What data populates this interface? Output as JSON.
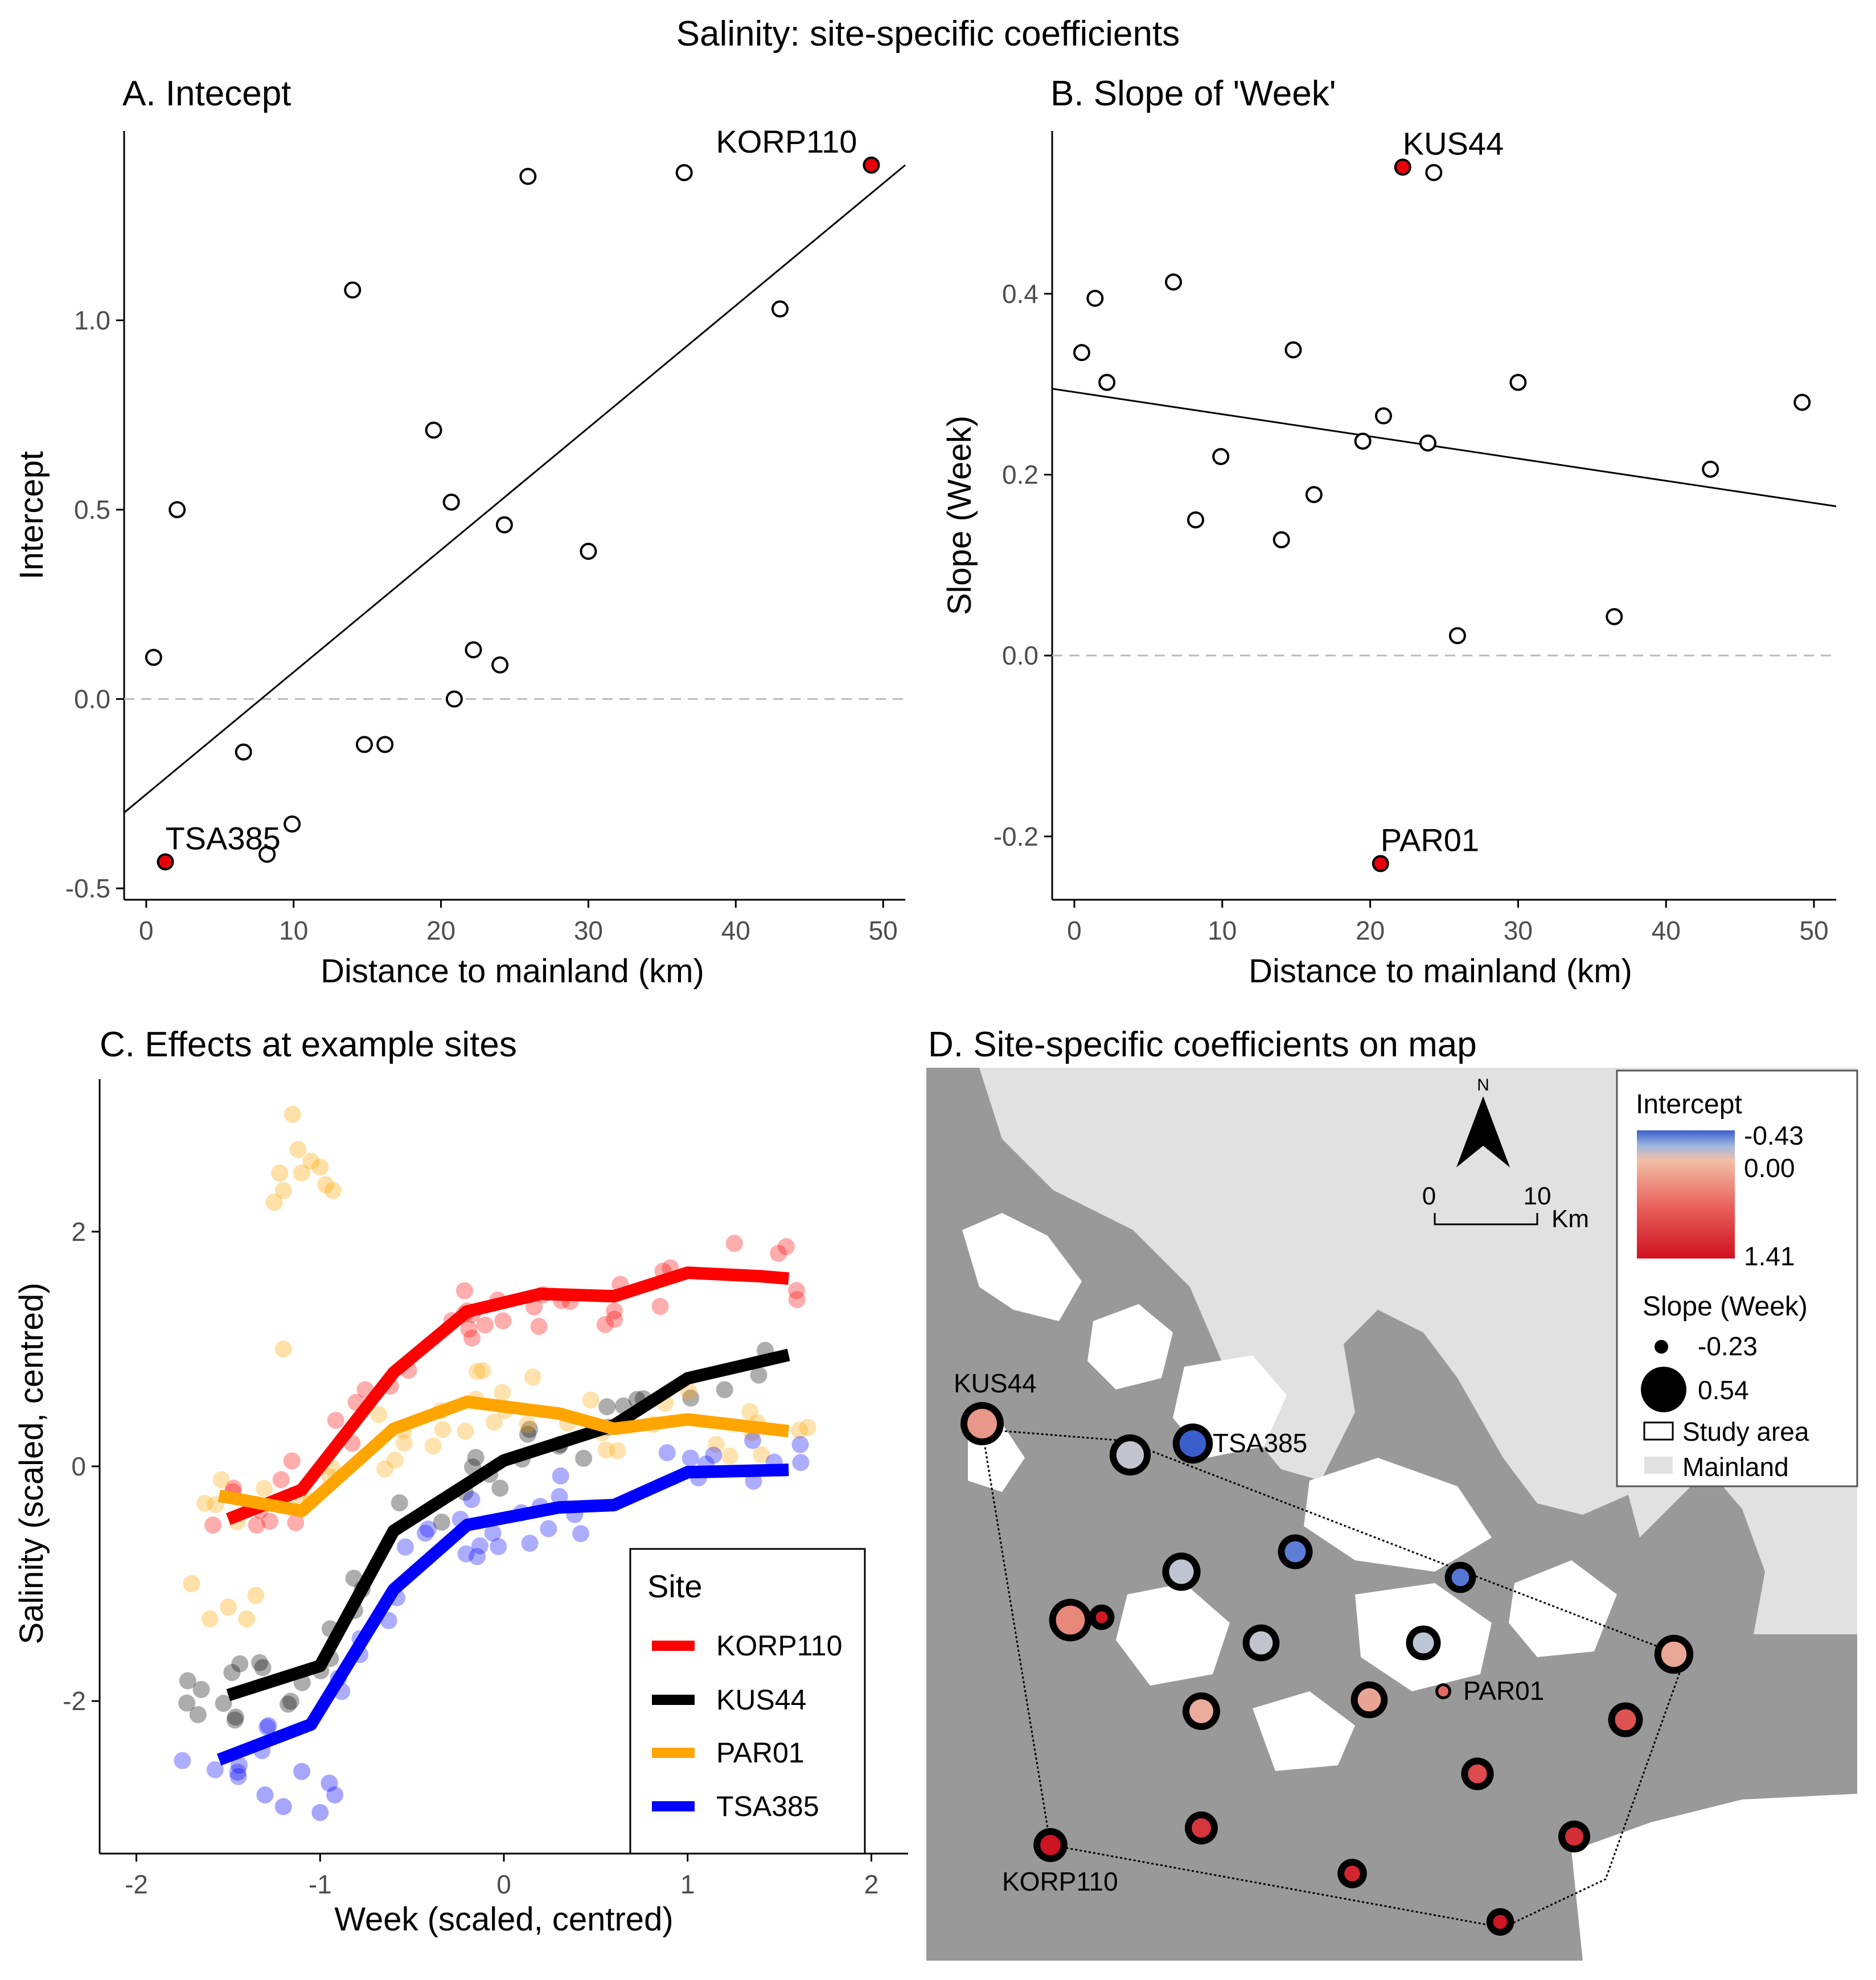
{
  "figure_title": "Salinity: site-specific coefficients",
  "chart_data": [
    {
      "panel": "A",
      "type": "scatter",
      "title": "A. Intecept",
      "xlabel": "Distance to mainland (km)",
      "ylabel": "Intercept",
      "xlim": [
        -1.5,
        51.5
      ],
      "ylim": [
        -0.53,
        1.5
      ],
      "xticks": [
        0,
        10,
        20,
        30,
        40,
        50
      ],
      "yticks": [
        -0.5,
        0.0,
        0.5,
        1.0
      ],
      "ytick_labels": [
        "-0.5",
        "0.0",
        "0.5",
        "1.0"
      ],
      "points": [
        {
          "x": 0.5,
          "y": 0.11
        },
        {
          "x": 2.1,
          "y": 0.5
        },
        {
          "x": 6.6,
          "y": -0.14
        },
        {
          "x": 8.2,
          "y": -0.41
        },
        {
          "x": 9.9,
          "y": -0.33
        },
        {
          "x": 14.0,
          "y": 1.08
        },
        {
          "x": 14.8,
          "y": -0.12
        },
        {
          "x": 16.2,
          "y": -0.12
        },
        {
          "x": 19.5,
          "y": 0.71
        },
        {
          "x": 20.7,
          "y": 0.52
        },
        {
          "x": 20.9,
          "y": 0.0
        },
        {
          "x": 22.2,
          "y": 0.13
        },
        {
          "x": 24.0,
          "y": 0.09
        },
        {
          "x": 24.3,
          "y": 0.46
        },
        {
          "x": 25.9,
          "y": 1.38
        },
        {
          "x": 30.0,
          "y": 0.39
        },
        {
          "x": 36.5,
          "y": 1.39
        },
        {
          "x": 43.0,
          "y": 1.03
        }
      ],
      "highlighted": [
        {
          "label": "KORP110",
          "x": 49.2,
          "y": 1.41,
          "color": "#e8000b"
        },
        {
          "label": "TSA385",
          "x": 1.3,
          "y": -0.43,
          "color": "#e8000b"
        }
      ],
      "fit_line": {
        "x": [
          -1.5,
          51.5
        ],
        "y": [
          -0.3,
          1.41
        ]
      },
      "reference_line": 0.0
    },
    {
      "panel": "B",
      "type": "scatter",
      "title": "B. Slope of 'Week'",
      "xlabel": "Distance to mainland (km)",
      "ylabel": "Slope (Week)",
      "xlim": [
        -1.5,
        51.5
      ],
      "ylim": [
        -0.27,
        0.58
      ],
      "xticks": [
        0,
        10,
        20,
        30,
        40,
        50
      ],
      "yticks": [
        -0.2,
        0.0,
        0.2,
        0.4
      ],
      "ytick_labels": [
        "-0.2",
        "0.0",
        "0.2",
        "0.4"
      ],
      "points": [
        {
          "x": 0.5,
          "y": 0.335
        },
        {
          "x": 1.4,
          "y": 0.395
        },
        {
          "x": 2.2,
          "y": 0.302
        },
        {
          "x": 6.7,
          "y": 0.413
        },
        {
          "x": 8.2,
          "y": 0.15
        },
        {
          "x": 9.9,
          "y": 0.22
        },
        {
          "x": 14.0,
          "y": 0.128
        },
        {
          "x": 14.8,
          "y": 0.338
        },
        {
          "x": 16.2,
          "y": 0.178
        },
        {
          "x": 19.5,
          "y": 0.237
        },
        {
          "x": 20.9,
          "y": 0.265
        },
        {
          "x": 23.9,
          "y": 0.235
        },
        {
          "x": 24.3,
          "y": 0.534
        },
        {
          "x": 25.9,
          "y": 0.022
        },
        {
          "x": 30.0,
          "y": 0.302
        },
        {
          "x": 36.5,
          "y": 0.043
        },
        {
          "x": 43.0,
          "y": 0.206
        },
        {
          "x": 49.2,
          "y": 0.28
        }
      ],
      "highlighted": [
        {
          "label": "KUS44",
          "x": 22.2,
          "y": 0.54,
          "color": "#e8000b"
        },
        {
          "label": "PAR01",
          "x": 20.7,
          "y": -0.23,
          "color": "#e8000b"
        }
      ],
      "fit_line": {
        "x": [
          -1.5,
          51.5
        ],
        "y": [
          0.295,
          0.165
        ]
      },
      "reference_line": 0.0
    },
    {
      "panel": "C",
      "type": "line",
      "title": "C. Effects at example sites",
      "xlabel": "Week (scaled, centred)",
      "ylabel": "Salinity (scaled, centred)",
      "xlim": [
        -2.2,
        2.2
      ],
      "ylim": [
        -3.3,
        3.3
      ],
      "xticks": [
        -2,
        -1,
        0,
        1,
        2
      ],
      "yticks": [
        -2,
        0,
        2
      ],
      "legend_title": "Site",
      "series": [
        {
          "name": "KORP110",
          "color": "#ff0000",
          "x": [
            -1.5,
            -1.1,
            -0.6,
            -0.2,
            0.2,
            0.6,
            1.0,
            1.4,
            1.55
          ],
          "y": [
            -0.45,
            -0.2,
            0.8,
            1.32,
            1.47,
            1.45,
            1.65,
            1.62,
            1.6
          ]
        },
        {
          "name": "KUS44",
          "color": "#000000",
          "x": [
            -1.5,
            -1.0,
            -0.6,
            0.0,
            0.6,
            1.0,
            1.55
          ],
          "y": [
            -1.95,
            -1.7,
            -0.55,
            0.05,
            0.35,
            0.75,
            0.95
          ]
        },
        {
          "name": "PAR01",
          "color": "#ffa500",
          "x": [
            -1.55,
            -1.1,
            -0.6,
            -0.2,
            0.3,
            0.6,
            1.0,
            1.55
          ],
          "y": [
            -0.25,
            -0.38,
            0.32,
            0.55,
            0.45,
            0.32,
            0.4,
            0.3
          ]
        },
        {
          "name": "TSA385",
          "color": "#0000ff",
          "x": [
            -1.55,
            -1.05,
            -0.6,
            -0.2,
            0.3,
            0.6,
            1.0,
            1.55
          ],
          "y": [
            -2.5,
            -2.2,
            -1.05,
            -0.5,
            -0.35,
            -0.33,
            -0.05,
            -0.03
          ]
        }
      ],
      "scatter_clusters": [
        {
          "series": "KORP110",
          "xrange": [
            -1.75,
            1.75
          ],
          "jitter": 0.18
        },
        {
          "series": "KUS44",
          "xrange": [
            -1.75,
            1.75
          ],
          "jitter": 0.15
        },
        {
          "series": "PAR01",
          "xrange": [
            -1.75,
            1.75
          ],
          "jitter": 0.18
        },
        {
          "series": "TSA385",
          "xrange": [
            -1.75,
            1.75
          ],
          "jitter": 0.18
        }
      ],
      "extra_points": [
        {
          "series": "PAR01",
          "x": -1.22,
          "y": 2.5
        },
        {
          "series": "PAR01",
          "x": -1.2,
          "y": 2.35
        },
        {
          "series": "PAR01",
          "x": -1.15,
          "y": 3.0
        },
        {
          "series": "PAR01",
          "x": -1.12,
          "y": 2.7
        },
        {
          "series": "PAR01",
          "x": -1.1,
          "y": 2.5
        },
        {
          "series": "PAR01",
          "x": -1.05,
          "y": 2.6
        },
        {
          "series": "PAR01",
          "x": -1.0,
          "y": 2.55
        },
        {
          "series": "PAR01",
          "x": -0.97,
          "y": 2.4
        },
        {
          "series": "PAR01",
          "x": -1.25,
          "y": 2.25
        },
        {
          "series": "PAR01",
          "x": -0.93,
          "y": 2.35
        },
        {
          "series": "PAR01",
          "x": -1.2,
          "y": 1.0
        },
        {
          "series": "PAR01",
          "x": -1.7,
          "y": -1.0
        },
        {
          "series": "PAR01",
          "x": -1.6,
          "y": -1.3
        },
        {
          "series": "PAR01",
          "x": -1.5,
          "y": -1.2
        },
        {
          "series": "PAR01",
          "x": -1.4,
          "y": -1.3
        },
        {
          "series": "PAR01",
          "x": -1.35,
          "y": -1.1
        },
        {
          "series": "TSA385",
          "x": -1.3,
          "y": -2.8
        },
        {
          "series": "TSA385",
          "x": -1.2,
          "y": -2.9
        },
        {
          "series": "TSA385",
          "x": -1.0,
          "y": -2.95
        },
        {
          "series": "TSA385",
          "x": -0.95,
          "y": -2.7
        },
        {
          "series": "TSA385",
          "x": -0.92,
          "y": -2.8
        },
        {
          "series": "TSA385",
          "x": -1.1,
          "y": -2.6
        }
      ]
    },
    {
      "panel": "D",
      "type": "map",
      "title": "D. Site-specific coefficients on map",
      "north_label": "N",
      "scale_labels": [
        "0",
        "10",
        "Km"
      ],
      "legend": {
        "intercept_title": "Intercept",
        "intercept_labels": [
          "-0.43",
          "0.00",
          "1.41"
        ],
        "slope_title": "Slope (Week)",
        "slope_labels": [
          "-0.23",
          "0.54"
        ],
        "study_area_label": "Study area",
        "mainland_label": "Mainland"
      },
      "sites": [
        {
          "label": "KUS44",
          "intercept": 0.6,
          "slope": 0.54
        },
        {
          "label": "",
          "intercept": 0.13,
          "slope": 0.48
        },
        {
          "label": "TSA385",
          "intercept": -0.43,
          "slope": 0.45
        },
        {
          "label": "",
          "intercept": -0.3,
          "slope": 0.3
        },
        {
          "label": "",
          "intercept": 0.11,
          "slope": 0.4
        },
        {
          "label": "",
          "intercept": -0.33,
          "slope": 0.2
        },
        {
          "label": "",
          "intercept": 0.7,
          "slope": 0.52
        },
        {
          "label": "",
          "intercept": 0.13,
          "slope": 0.36
        },
        {
          "label": "",
          "intercept": 0.09,
          "slope": 0.3
        },
        {
          "label": "PAR01",
          "intercept": 0.9,
          "slope": -0.23
        },
        {
          "label": "",
          "intercept": 0.52,
          "slope": 0.36
        },
        {
          "label": "",
          "intercept": 0.46,
          "slope": 0.38
        },
        {
          "label": "",
          "intercept": 0.5,
          "slope": 0.42
        },
        {
          "label": "",
          "intercept": 1.03,
          "slope": 0.3
        },
        {
          "label": "",
          "intercept": 1.08,
          "slope": 0.24
        },
        {
          "label": "",
          "intercept": 1.2,
          "slope": 0.25
        },
        {
          "label": "",
          "intercept": 1.25,
          "slope": 0.22
        },
        {
          "label": "KORP110",
          "intercept": 1.41,
          "slope": 0.28
        },
        {
          "label": "",
          "intercept": 1.3,
          "slope": 0.15
        },
        {
          "label": "",
          "intercept": 1.39,
          "slope": 0.1
        },
        {
          "label": "",
          "intercept": 1.38,
          "slope": 0.04
        }
      ]
    }
  ]
}
